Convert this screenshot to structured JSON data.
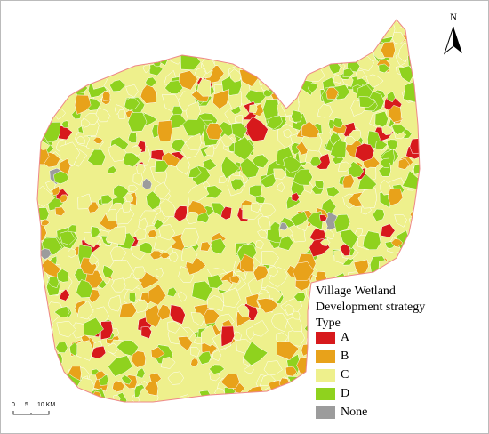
{
  "north_arrow": {
    "label": "N"
  },
  "scale_bar": {
    "labels": [
      "0",
      "5",
      "10 KM"
    ]
  },
  "legend": {
    "title_lines": [
      "Village Wetland",
      "Development strategy",
      "Type"
    ],
    "items": [
      {
        "label": "A",
        "color": "#d7191c"
      },
      {
        "label": "B",
        "color": "#e8a21a"
      },
      {
        "label": "C",
        "color": "#eef08c"
      },
      {
        "label": "D",
        "color": "#8fd21e"
      },
      {
        "label": "None",
        "color": "#9c9c9c"
      }
    ]
  }
}
